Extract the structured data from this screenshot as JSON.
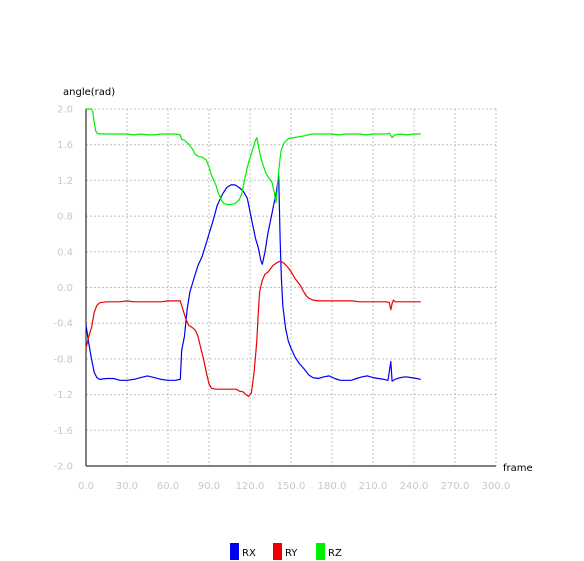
{
  "chart_data": {
    "type": "line",
    "title": "",
    "xlabel": "frame",
    "ylabel": "angle(rad)",
    "xlim": [
      0,
      300
    ],
    "ylim": [
      -2.0,
      2.0
    ],
    "x_ticks": [
      0,
      30,
      60,
      90,
      120,
      150,
      180,
      210,
      240,
      270,
      300
    ],
    "x_tick_labels": [
      "0.0",
      "30.0",
      "60.0",
      "90.0",
      "120.0",
      "150.0",
      "180.0",
      "210.0",
      "240.0",
      "270.0",
      "300.0"
    ],
    "y_ticks": [
      2.0,
      1.6,
      1.2,
      0.8,
      0.4,
      0.0,
      -0.4,
      -0.8,
      -1.2,
      -1.6,
      -2.0
    ],
    "y_tick_labels": [
      "2.0",
      "1.6",
      "1.2",
      "0.8",
      "0.4",
      "0.0",
      "-0.4",
      "-0.8",
      "-1.2",
      "-1.6",
      "-2.0"
    ],
    "grid": true,
    "legend_position": "bottom",
    "series": [
      {
        "name": "RX",
        "color": "#0000ee",
        "points": [
          [
            0,
            -0.42
          ],
          [
            2,
            -0.62
          ],
          [
            4,
            -0.8
          ],
          [
            6,
            -0.95
          ],
          [
            8,
            -1.01
          ],
          [
            10,
            -1.03
          ],
          [
            15,
            -1.02
          ],
          [
            20,
            -1.02
          ],
          [
            25,
            -1.04
          ],
          [
            30,
            -1.04
          ],
          [
            35,
            -1.03
          ],
          [
            40,
            -1.01
          ],
          [
            45,
            -0.99
          ],
          [
            50,
            -1.01
          ],
          [
            55,
            -1.03
          ],
          [
            60,
            -1.04
          ],
          [
            65,
            -1.04
          ],
          [
            69,
            -1.03
          ],
          [
            70,
            -0.7
          ],
          [
            72,
            -0.55
          ],
          [
            74,
            -0.25
          ],
          [
            76,
            -0.05
          ],
          [
            78,
            0.05
          ],
          [
            80,
            0.15
          ],
          [
            82,
            0.25
          ],
          [
            85,
            0.35
          ],
          [
            88,
            0.5
          ],
          [
            90,
            0.6
          ],
          [
            93,
            0.75
          ],
          [
            96,
            0.92
          ],
          [
            100,
            1.05
          ],
          [
            103,
            1.12
          ],
          [
            106,
            1.15
          ],
          [
            109,
            1.15
          ],
          [
            112,
            1.12
          ],
          [
            115,
            1.08
          ],
          [
            118,
            1.0
          ],
          [
            120,
            0.85
          ],
          [
            122,
            0.7
          ],
          [
            124,
            0.55
          ],
          [
            126,
            0.45
          ],
          [
            128,
            0.3
          ],
          [
            129,
            0.26
          ],
          [
            131,
            0.4
          ],
          [
            133,
            0.6
          ],
          [
            135,
            0.75
          ],
          [
            137,
            0.9
          ],
          [
            139,
            1.05
          ],
          [
            141,
            1.25
          ],
          [
            142,
            0.55
          ],
          [
            143,
            0.1
          ],
          [
            144,
            -0.2
          ],
          [
            146,
            -0.45
          ],
          [
            148,
            -0.6
          ],
          [
            150,
            -0.68
          ],
          [
            153,
            -0.78
          ],
          [
            156,
            -0.85
          ],
          [
            160,
            -0.92
          ],
          [
            163,
            -0.98
          ],
          [
            166,
            -1.01
          ],
          [
            170,
            -1.02
          ],
          [
            174,
            -1.0
          ],
          [
            178,
            -0.99
          ],
          [
            182,
            -1.02
          ],
          [
            186,
            -1.04
          ],
          [
            190,
            -1.04
          ],
          [
            194,
            -1.04
          ],
          [
            198,
            -1.02
          ],
          [
            202,
            -1.0
          ],
          [
            206,
            -0.99
          ],
          [
            210,
            -1.01
          ],
          [
            214,
            -1.02
          ],
          [
            218,
            -1.03
          ],
          [
            221,
            -1.04
          ],
          [
            223,
            -0.83
          ],
          [
            224,
            -1.05
          ],
          [
            226,
            -1.03
          ],
          [
            230,
            -1.01
          ],
          [
            234,
            -1.0
          ],
          [
            238,
            -1.01
          ],
          [
            242,
            -1.02
          ],
          [
            245,
            -1.03
          ]
        ]
      },
      {
        "name": "RY",
        "color": "#ee0000",
        "points": [
          [
            0,
            -0.68
          ],
          [
            2,
            -0.55
          ],
          [
            4,
            -0.45
          ],
          [
            6,
            -0.28
          ],
          [
            8,
            -0.2
          ],
          [
            10,
            -0.17
          ],
          [
            15,
            -0.16
          ],
          [
            20,
            -0.16
          ],
          [
            25,
            -0.16
          ],
          [
            30,
            -0.15
          ],
          [
            35,
            -0.16
          ],
          [
            40,
            -0.16
          ],
          [
            45,
            -0.16
          ],
          [
            50,
            -0.16
          ],
          [
            55,
            -0.16
          ],
          [
            60,
            -0.15
          ],
          [
            65,
            -0.15
          ],
          [
            69,
            -0.15
          ],
          [
            71,
            -0.25
          ],
          [
            73,
            -0.35
          ],
          [
            75,
            -0.42
          ],
          [
            78,
            -0.45
          ],
          [
            80,
            -0.48
          ],
          [
            82,
            -0.55
          ],
          [
            84,
            -0.68
          ],
          [
            86,
            -0.8
          ],
          [
            88,
            -0.95
          ],
          [
            90,
            -1.08
          ],
          [
            92,
            -1.13
          ],
          [
            95,
            -1.14
          ],
          [
            100,
            -1.14
          ],
          [
            105,
            -1.14
          ],
          [
            110,
            -1.14
          ],
          [
            112,
            -1.16
          ],
          [
            115,
            -1.17
          ],
          [
            117,
            -1.2
          ],
          [
            119,
            -1.22
          ],
          [
            121,
            -1.18
          ],
          [
            123,
            -0.95
          ],
          [
            125,
            -0.6
          ],
          [
            126,
            -0.3
          ],
          [
            127,
            -0.05
          ],
          [
            129,
            0.08
          ],
          [
            131,
            0.15
          ],
          [
            133,
            0.17
          ],
          [
            135,
            0.21
          ],
          [
            137,
            0.25
          ],
          [
            139,
            0.27
          ],
          [
            141,
            0.29
          ],
          [
            143,
            0.29
          ],
          [
            145,
            0.27
          ],
          [
            147,
            0.24
          ],
          [
            149,
            0.2
          ],
          [
            151,
            0.15
          ],
          [
            153,
            0.1
          ],
          [
            155,
            0.06
          ],
          [
            157,
            0.02
          ],
          [
            159,
            -0.04
          ],
          [
            161,
            -0.09
          ],
          [
            163,
            -0.12
          ],
          [
            166,
            -0.14
          ],
          [
            170,
            -0.15
          ],
          [
            175,
            -0.15
          ],
          [
            180,
            -0.15
          ],
          [
            185,
            -0.15
          ],
          [
            190,
            -0.15
          ],
          [
            195,
            -0.15
          ],
          [
            200,
            -0.16
          ],
          [
            205,
            -0.16
          ],
          [
            210,
            -0.16
          ],
          [
            215,
            -0.16
          ],
          [
            220,
            -0.16
          ],
          [
            222,
            -0.17
          ],
          [
            223,
            -0.25
          ],
          [
            224,
            -0.18
          ],
          [
            225,
            -0.14
          ],
          [
            226,
            -0.16
          ],
          [
            230,
            -0.16
          ],
          [
            235,
            -0.16
          ],
          [
            240,
            -0.16
          ],
          [
            245,
            -0.16
          ]
        ]
      },
      {
        "name": "RZ",
        "color": "#00ee00",
        "points": [
          [
            0,
            2.0
          ],
          [
            2,
            2.0
          ],
          [
            4,
            2.0
          ],
          [
            5,
            1.97
          ],
          [
            6,
            1.85
          ],
          [
            7,
            1.76
          ],
          [
            8,
            1.73
          ],
          [
            10,
            1.72
          ],
          [
            15,
            1.72
          ],
          [
            20,
            1.72
          ],
          [
            25,
            1.72
          ],
          [
            30,
            1.72
          ],
          [
            35,
            1.71
          ],
          [
            40,
            1.72
          ],
          [
            45,
            1.71
          ],
          [
            50,
            1.71
          ],
          [
            55,
            1.72
          ],
          [
            60,
            1.72
          ],
          [
            65,
            1.72
          ],
          [
            69,
            1.71
          ],
          [
            70,
            1.66
          ],
          [
            72,
            1.65
          ],
          [
            75,
            1.61
          ],
          [
            78,
            1.55
          ],
          [
            80,
            1.49
          ],
          [
            82,
            1.47
          ],
          [
            85,
            1.46
          ],
          [
            88,
            1.43
          ],
          [
            90,
            1.35
          ],
          [
            92,
            1.25
          ],
          [
            95,
            1.15
          ],
          [
            97,
            1.05
          ],
          [
            99,
            0.98
          ],
          [
            101,
            0.94
          ],
          [
            103,
            0.93
          ],
          [
            106,
            0.93
          ],
          [
            109,
            0.94
          ],
          [
            112,
            0.98
          ],
          [
            114,
            1.05
          ],
          [
            116,
            1.2
          ],
          [
            118,
            1.35
          ],
          [
            120,
            1.45
          ],
          [
            122,
            1.55
          ],
          [
            124,
            1.65
          ],
          [
            125,
            1.68
          ],
          [
            126,
            1.6
          ],
          [
            128,
            1.45
          ],
          [
            130,
            1.35
          ],
          [
            132,
            1.27
          ],
          [
            134,
            1.22
          ],
          [
            136,
            1.18
          ],
          [
            138,
            1.05
          ],
          [
            139,
            0.95
          ],
          [
            140,
            1.1
          ],
          [
            141,
            1.3
          ],
          [
            142,
            1.45
          ],
          [
            143,
            1.55
          ],
          [
            145,
            1.62
          ],
          [
            148,
            1.67
          ],
          [
            152,
            1.68
          ],
          [
            156,
            1.69
          ],
          [
            160,
            1.7
          ],
          [
            165,
            1.72
          ],
          [
            170,
            1.72
          ],
          [
            175,
            1.72
          ],
          [
            180,
            1.72
          ],
          [
            185,
            1.71
          ],
          [
            190,
            1.72
          ],
          [
            195,
            1.72
          ],
          [
            200,
            1.72
          ],
          [
            205,
            1.71
          ],
          [
            210,
            1.72
          ],
          [
            215,
            1.72
          ],
          [
            220,
            1.72
          ],
          [
            222,
            1.73
          ],
          [
            224,
            1.68
          ],
          [
            226,
            1.71
          ],
          [
            230,
            1.72
          ],
          [
            235,
            1.71
          ],
          [
            240,
            1.72
          ],
          [
            245,
            1.72
          ]
        ]
      }
    ]
  }
}
